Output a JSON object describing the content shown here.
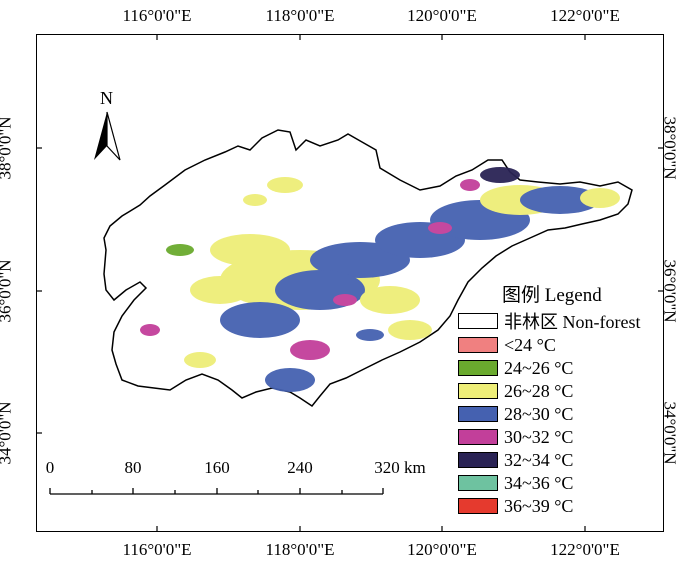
{
  "map": {
    "top_ticks": [
      "116°0'0\"E",
      "118°0'0\"E",
      "120°0'0\"E",
      "122°0'0\"E"
    ],
    "bottom_ticks": [
      "116°0'0\"E",
      "118°0'0\"E",
      "120°0'0\"E",
      "122°0'0\"E"
    ],
    "left_ticks": [
      "38°0'0\"N",
      "36°0'0\"N",
      "34°0'0\"N"
    ],
    "right_ticks": [
      "38°0'0\"N",
      "36°0'0\"N",
      "34°0'0\"N"
    ],
    "north_label": "N"
  },
  "legend": {
    "title": "图例 Legend",
    "items": [
      {
        "label": "非林区 Non-forest",
        "color": "#ffffff"
      },
      {
        "label": "<24 °C",
        "color": "#f08080"
      },
      {
        "label": "24~26 °C",
        "color": "#6aaa2e"
      },
      {
        "label": "26~28 °C",
        "color": "#eeee78"
      },
      {
        "label": "28~30 °C",
        "color": "#4561b0"
      },
      {
        "label": "30~32 °C",
        "color": "#c23f9a"
      },
      {
        "label": "32~34 °C",
        "color": "#2a2355"
      },
      {
        "label": "34~36 °C",
        "color": "#6ec2a0"
      },
      {
        "label": "36~39 °C",
        "color": "#e53a2e"
      }
    ]
  },
  "scale_bar": {
    "labels": [
      "0",
      "80",
      "160",
      "240",
      "320 km"
    ]
  }
}
